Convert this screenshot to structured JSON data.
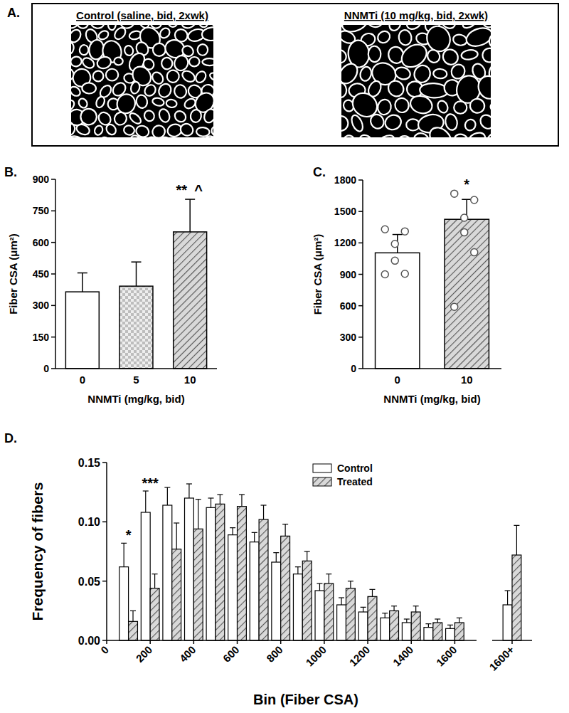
{
  "panel_a": {
    "label": "A.",
    "images": [
      "Control (saline, bid, 2xwk)",
      "NNMTi (10 mg/kg, bid, 2xwk)"
    ]
  },
  "chart_data": [
    {
      "type": "bar",
      "title": "B.",
      "categories": [
        "0",
        "5",
        "10"
      ],
      "values": [
        365,
        392,
        650
      ],
      "errors": [
        90,
        115,
        155
      ],
      "colors": [
        "#ffffff",
        "#cccccc",
        "#aaaaaa"
      ],
      "x_label": "NNMTi (mg/kg, bid)",
      "y_label": "Fiber CSA (μm²)",
      "ylim": [
        0,
        900
      ],
      "yticks": [
        0,
        150,
        300,
        450,
        600,
        750,
        900
      ],
      "grid": false,
      "annotations": [
        {
          "text": "**",
          "at": "10"
        },
        {
          "text": "^",
          "at": "10"
        }
      ]
    },
    {
      "type": "bar",
      "title": "C.",
      "categories": [
        "0",
        "10"
      ],
      "values": [
        1105,
        1425
      ],
      "errors": [
        175,
        190
      ],
      "points": [
        [
          1330,
          1310,
          1190,
          1030,
          905,
          900
        ],
        [
          1670,
          1610,
          1440,
          1300,
          1110,
          590
        ]
      ],
      "colors": [
        "#ffffff",
        "#aaaaaa"
      ],
      "x_label": "NNMTi (mg/kg, bid)",
      "y_label": "Fiber CSA (μm²)",
      "ylim": [
        0,
        1800
      ],
      "yticks": [
        0,
        300,
        600,
        900,
        1200,
        1500,
        1800
      ],
      "grid": false,
      "annotations": [
        {
          "text": "*",
          "at": "10"
        }
      ]
    },
    {
      "type": "bar",
      "title": "D.",
      "x": [
        100,
        200,
        300,
        400,
        500,
        600,
        700,
        800,
        900,
        1000,
        1100,
        1200,
        1300,
        1400,
        1500,
        1600
      ],
      "xlim": [
        0,
        1700
      ],
      "xticks": [
        0,
        200,
        400,
        600,
        800,
        1000,
        1200,
        1400,
        1600
      ],
      "overflow_label": "1600+",
      "series": [
        {
          "name": "Control",
          "color": "#ffffff",
          "values": [
            0.062,
            0.108,
            0.114,
            0.12,
            0.112,
            0.089,
            0.083,
            0.066,
            0.056,
            0.042,
            0.03,
            0.024,
            0.019,
            0.015,
            0.011,
            0.01
          ],
          "errors": [
            0.02,
            0.018,
            0.015,
            0.012,
            0.008,
            0.006,
            0.008,
            0.008,
            0.006,
            0.006,
            0.006,
            0.004,
            0.004,
            0.003,
            0.003,
            0.003
          ],
          "overflow_value": 0.03,
          "overflow_error": 0.012
        },
        {
          "name": "Treated",
          "color": "#aaaaaa",
          "values": [
            0.016,
            0.044,
            0.077,
            0.094,
            0.115,
            0.113,
            0.102,
            0.088,
            0.067,
            0.048,
            0.044,
            0.037,
            0.025,
            0.024,
            0.015,
            0.015
          ],
          "errors": [
            0.009,
            0.012,
            0.022,
            0.025,
            0.008,
            0.01,
            0.012,
            0.01,
            0.008,
            0.008,
            0.006,
            0.006,
            0.004,
            0.005,
            0.003,
            0.004
          ],
          "overflow_value": 0.072,
          "overflow_error": 0.025
        }
      ],
      "ylim": [
        0,
        0.15
      ],
      "yticks": [
        {
          "value": 0,
          "label": "0.00"
        },
        {
          "value": 0.05,
          "label": "0.05"
        },
        {
          "value": 0.1,
          "label": "0.10"
        },
        {
          "value": 0.15,
          "label": "0.15"
        }
      ],
      "x_label": "Bin (Fiber CSA)",
      "y_label": "Frequency of fibers",
      "legend": "top-right",
      "grid": false,
      "annotations": [
        {
          "text": "*",
          "at": 100
        },
        {
          "text": "***",
          "at": 200
        }
      ]
    }
  ]
}
